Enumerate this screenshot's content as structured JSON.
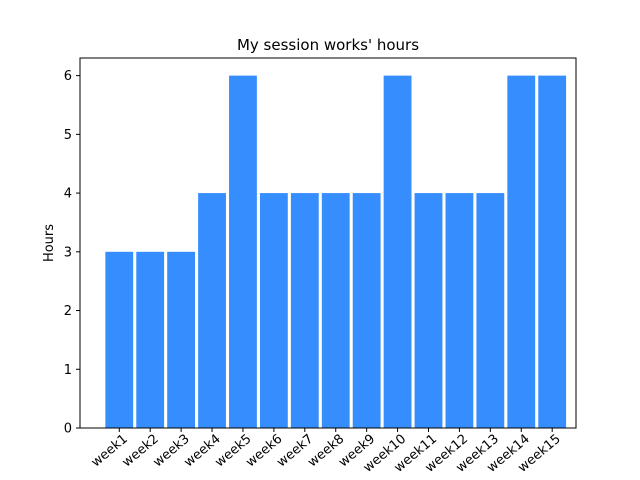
{
  "chart_data": {
    "type": "bar",
    "title": "My session works' hours",
    "xlabel": "",
    "ylabel": "Hours",
    "categories": [
      "week1",
      "week2",
      "week3",
      "week4",
      "week5",
      "week6",
      "week7",
      "week8",
      "week9",
      "week10",
      "week11",
      "week12",
      "week13",
      "week14",
      "week15"
    ],
    "values": [
      3,
      3,
      3,
      4,
      6,
      4,
      4,
      4,
      4,
      6,
      4,
      4,
      4,
      6,
      6
    ],
    "ylim": [
      0,
      6.3
    ],
    "yticks": [
      0,
      1,
      2,
      3,
      4,
      5,
      6
    ],
    "bar_color": "#368dfe",
    "grid": false,
    "legend": "none"
  }
}
